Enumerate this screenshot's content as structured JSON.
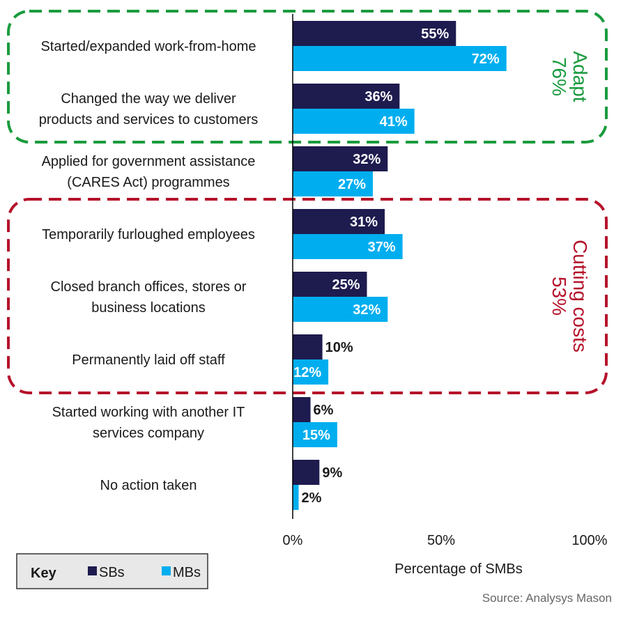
{
  "chart_data": {
    "type": "bar",
    "orientation": "horizontal",
    "categories": [
      [
        "Started/expanded work-from-home"
      ],
      [
        "Changed the way we deliver",
        "products and services to customers"
      ],
      [
        "Applied for government assistance",
        "(CARES Act) programmes"
      ],
      [
        "Temporarily furloughed employees"
      ],
      [
        "Closed branch offices, stores or",
        "business locations"
      ],
      [
        "Permanently laid off staff"
      ],
      [
        "Started working with another IT",
        "services company"
      ],
      [
        "No action taken"
      ]
    ],
    "series": [
      {
        "name": "SBs",
        "color": "#1e1b4f",
        "values": [
          55,
          36,
          32,
          31,
          25,
          10,
          6,
          9
        ],
        "labels": [
          "55%",
          "36%",
          "32%",
          "31%",
          "25%",
          "10%",
          "6%",
          "9%"
        ]
      },
      {
        "name": "MBs",
        "color": "#00aeef",
        "values": [
          72,
          41,
          27,
          37,
          32,
          12,
          15,
          2
        ],
        "labels": [
          "72%",
          "41%",
          "27%",
          "37%",
          "32%",
          "12%",
          "15%",
          "2%"
        ]
      }
    ],
    "xlabel": "Percentage of SMBs",
    "xlim": [
      0,
      100
    ],
    "xticks": [
      0,
      50,
      100
    ],
    "xtick_labels": [
      "0%",
      "50%",
      "100%"
    ],
    "grid": false,
    "legend": {
      "position": "bottom-left",
      "title": "Key"
    },
    "groups": [
      {
        "lines": [
          "Adapt",
          "76%"
        ],
        "color": "#1a9b3e",
        "categories": [
          0,
          1
        ]
      },
      {
        "lines": [
          "Cutting costs",
          "53%"
        ],
        "color": "#b5122b",
        "categories": [
          3,
          4,
          5
        ]
      }
    ]
  },
  "source": "Source: Analysys Mason"
}
